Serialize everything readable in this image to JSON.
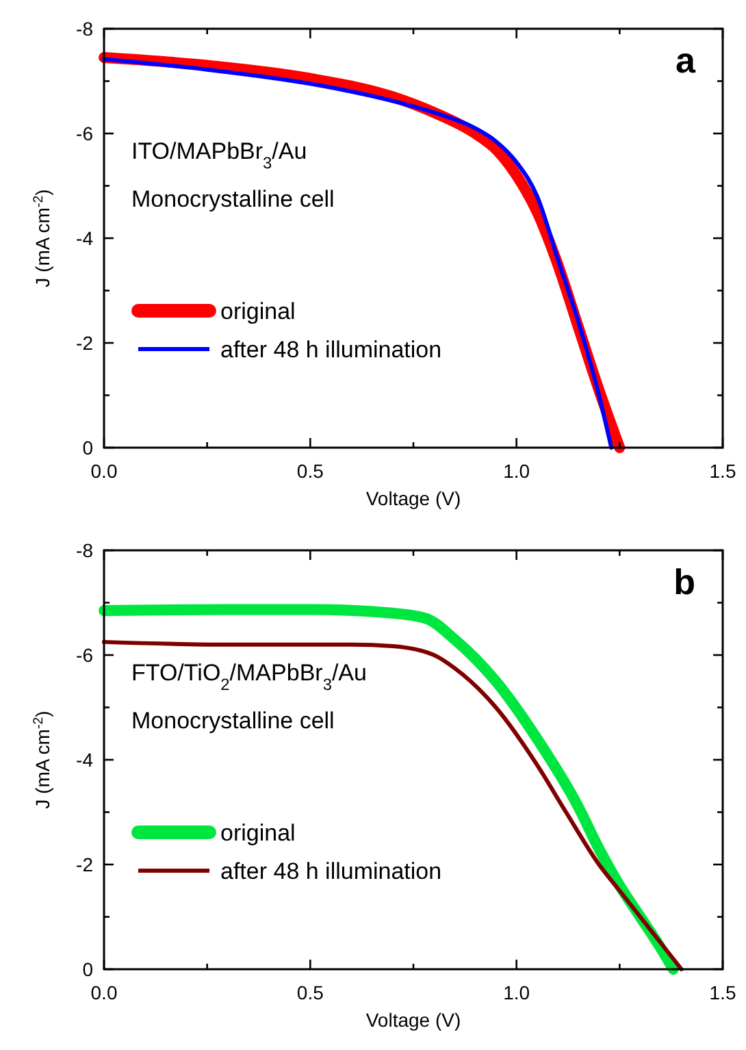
{
  "chart_data": [
    {
      "type": "line",
      "title": "a",
      "xlabel": "Voltage (V)",
      "ylabel": "J (mA cm$^{-2}$)",
      "annotations": [
        "ITO/MAPbBr$_{3}$/Au",
        "Monocrystalline cell"
      ],
      "xlim": [
        0,
        1.5
      ],
      "ylim": [
        0,
        -8
      ],
      "xticks": [
        {
          "value": 0,
          "label": "0.0"
        },
        {
          "value": 0.25,
          "label": null
        },
        {
          "value": 0.5,
          "label": "0.5"
        },
        {
          "value": 0.75,
          "label": null
        },
        {
          "value": 1,
          "label": "1.0"
        },
        {
          "value": 1.25,
          "label": null
        },
        {
          "value": 1.5,
          "label": "1.5"
        }
      ],
      "yticks": [
        0,
        {
          "value": -1,
          "label": null
        },
        -2,
        {
          "value": -3,
          "label": null
        },
        -4,
        {
          "value": -5,
          "label": null
        },
        -6,
        {
          "value": -7,
          "label": null
        },
        -8
      ],
      "legend": "left",
      "grid": false,
      "marker": "none",
      "line_style": "solid",
      "series": [
        {
          "name": "original",
          "color": "#ff0000",
          "x": [
            0,
            0.25,
            0.5,
            0.7,
            0.8,
            0.9,
            0.95,
            1.0,
            1.05,
            1.1,
            1.15,
            1.2,
            1.25
          ],
          "values": [
            -7.45,
            -7.3,
            -7.05,
            -6.7,
            -6.4,
            -6.0,
            -5.7,
            -5.2,
            -4.5,
            -3.5,
            -2.3,
            -1.1,
            0
          ]
        },
        {
          "name": "after 48 h illumination",
          "color": "#0000ff",
          "x": [
            0,
            0.25,
            0.5,
            0.7,
            0.8,
            0.9,
            0.95,
            1.0,
            1.05,
            1.1,
            1.15,
            1.2,
            1.23
          ],
          "values": [
            -7.42,
            -7.22,
            -6.95,
            -6.62,
            -6.4,
            -6.1,
            -5.85,
            -5.45,
            -4.8,
            -3.6,
            -2.4,
            -1.0,
            0
          ]
        }
      ]
    },
    {
      "type": "line",
      "title": "b",
      "xlabel": "Voltage (V)",
      "ylabel": "J (mA cm$^{-2}$)",
      "annotations": [
        "FTO/TiO$_{2}$/MAPbBr$_{3}$/Au",
        "Monocrystalline cell"
      ],
      "xlim": [
        0,
        1.5
      ],
      "ylim": [
        0,
        -8
      ],
      "xticks": [
        {
          "value": 0,
          "label": "0.0"
        },
        {
          "value": 0.25,
          "label": null
        },
        {
          "value": 0.5,
          "label": "0.5"
        },
        {
          "value": 0.75,
          "label": null
        },
        {
          "value": 1,
          "label": "1.0"
        },
        {
          "value": 1.25,
          "label": null
        },
        {
          "value": 1.5,
          "label": "1.5"
        }
      ],
      "yticks": [
        0,
        {
          "value": -1,
          "label": null
        },
        -2,
        {
          "value": -3,
          "label": null
        },
        -4,
        {
          "value": -5,
          "label": null
        },
        -6,
        {
          "value": -7,
          "label": null
        },
        -8
      ],
      "legend": "left",
      "grid": false,
      "marker": "none",
      "line_style": "solid",
      "series": [
        {
          "name": "original",
          "color": "#00e640",
          "x": [
            0,
            0.3,
            0.5,
            0.7,
            0.78,
            0.85,
            0.95,
            1.05,
            1.15,
            1.2,
            1.25,
            1.3,
            1.35,
            1.38
          ],
          "values": [
            -6.85,
            -6.87,
            -6.87,
            -6.8,
            -6.7,
            -6.3,
            -5.5,
            -4.4,
            -3.1,
            -2.3,
            -1.6,
            -1.0,
            -0.4,
            0
          ]
        },
        {
          "name": "after 48 h illumination",
          "color": "#800000",
          "x": [
            0,
            0.3,
            0.6,
            0.7,
            0.8,
            0.85,
            0.95,
            1.05,
            1.12,
            1.2,
            1.25,
            1.3,
            1.35,
            1.4
          ],
          "values": [
            -6.25,
            -6.2,
            -6.2,
            -6.17,
            -6.0,
            -5.75,
            -5.0,
            -3.9,
            -3.0,
            -2.0,
            -1.5,
            -1.0,
            -0.5,
            0
          ]
        }
      ]
    }
  ]
}
